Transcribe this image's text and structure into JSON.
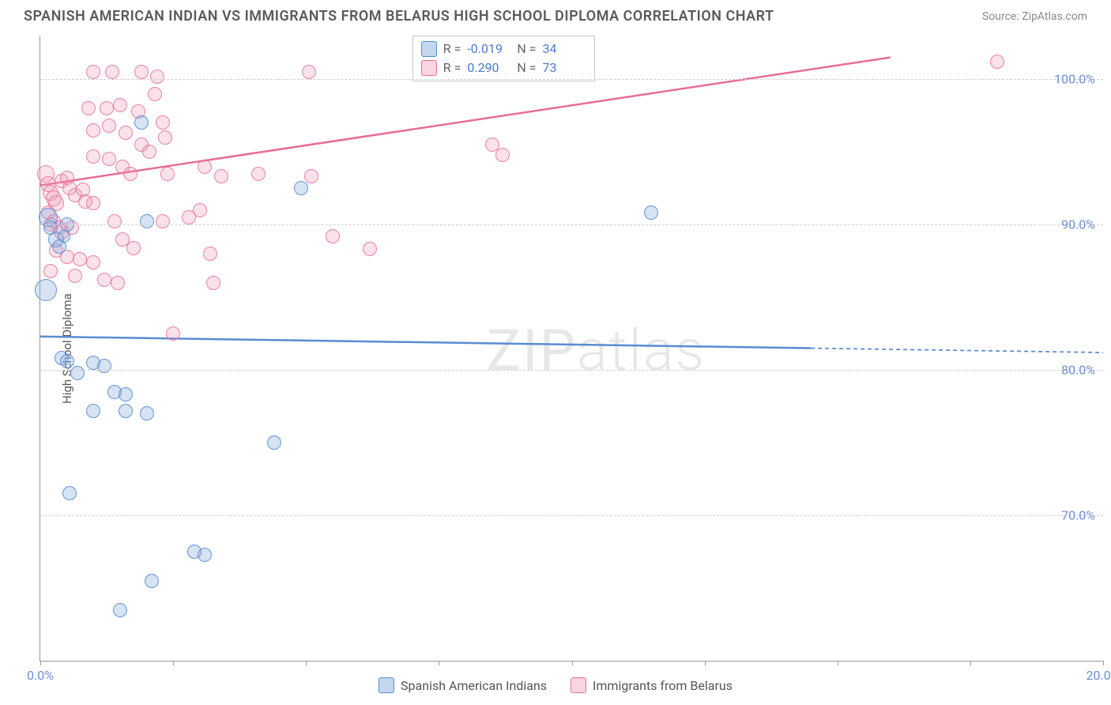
{
  "title": "SPANISH AMERICAN INDIAN VS IMMIGRANTS FROM BELARUS HIGH SCHOOL DIPLOMA CORRELATION CHART",
  "source_label": "Source: ",
  "source_name": "ZipAtlas.com",
  "watermark": "ZIPatlas",
  "y_axis_label": "High School Diploma",
  "chart": {
    "type": "scatter",
    "xlim": [
      0,
      20
    ],
    "ylim": [
      60,
      103
    ],
    "x_ticks": [
      0,
      2.5,
      5,
      7.5,
      10,
      12.5,
      15,
      17.5,
      20
    ],
    "x_tick_labels": [
      "0.0%",
      "",
      "",
      "",
      "",
      "",
      "",
      "",
      "20.0%"
    ],
    "y_ticks": [
      70,
      80,
      90,
      100
    ],
    "y_tick_labels": [
      "70.0%",
      "80.0%",
      "90.0%",
      "100.0%"
    ],
    "grid_color": "#d0d0d0",
    "background_color": "#ffffff",
    "point_radius": 9
  },
  "series_a": {
    "name": "Spanish American Indians",
    "color_fill": "rgba(138,176,222,0.35)",
    "color_stroke": "#5a8cd2",
    "R": "-0.019",
    "N": "34",
    "trend": {
      "x1": 0,
      "y1": 82.3,
      "x2": 14.5,
      "y2": 81.5,
      "x2_dash_end": 20,
      "y2_dash_end": 81.2,
      "width": 2.5
    },
    "points": [
      [
        0.15,
        90.5,
        12
      ],
      [
        0.2,
        89.8,
        9
      ],
      [
        0.3,
        89.0,
        10
      ],
      [
        0.35,
        88.5,
        9
      ],
      [
        0.5,
        90.0,
        9
      ],
      [
        0.1,
        85.5,
        14
      ],
      [
        0.45,
        89.2,
        8
      ],
      [
        0.4,
        80.8,
        9
      ],
      [
        0.5,
        80.6,
        9
      ],
      [
        0.7,
        79.8,
        9
      ],
      [
        1.0,
        80.5,
        9
      ],
      [
        1.2,
        80.3,
        9
      ],
      [
        1.4,
        78.5,
        9
      ],
      [
        1.6,
        78.3,
        9
      ],
      [
        1.0,
        77.2,
        9
      ],
      [
        1.6,
        77.2,
        9
      ],
      [
        2.0,
        77.0,
        9
      ],
      [
        0.55,
        71.5,
        9
      ],
      [
        2.9,
        67.5,
        9
      ],
      [
        3.1,
        67.3,
        9
      ],
      [
        2.1,
        65.5,
        9
      ],
      [
        1.5,
        63.5,
        9
      ],
      [
        4.4,
        75.0,
        9
      ],
      [
        1.9,
        97.0,
        9
      ],
      [
        2.0,
        90.2,
        9
      ],
      [
        4.9,
        92.5,
        9
      ],
      [
        11.5,
        90.8,
        9
      ]
    ]
  },
  "series_b": {
    "name": "Immigrants from Belarus",
    "color_fill": "rgba(240,150,180,0.28)",
    "color_stroke": "#e66e96",
    "R": " 0.290",
    "N": "73",
    "trend": {
      "x1": 0,
      "y1": 92.7,
      "x2": 16.0,
      "y2": 101.5,
      "width": 2.5
    },
    "points": [
      [
        0.1,
        93.5,
        11
      ],
      [
        0.15,
        92.8,
        10
      ],
      [
        0.2,
        92.2,
        10
      ],
      [
        0.25,
        91.8,
        10
      ],
      [
        0.3,
        91.5,
        10
      ],
      [
        0.15,
        90.8,
        9
      ],
      [
        0.25,
        90.2,
        9
      ],
      [
        0.35,
        89.8,
        9
      ],
      [
        0.4,
        93.0,
        9
      ],
      [
        0.5,
        93.2,
        9
      ],
      [
        0.55,
        92.5,
        9
      ],
      [
        0.65,
        92.0,
        9
      ],
      [
        0.2,
        90.0,
        9
      ],
      [
        0.4,
        89.5,
        10
      ],
      [
        0.6,
        89.8,
        9
      ],
      [
        0.8,
        92.4,
        9
      ],
      [
        0.85,
        91.6,
        9
      ],
      [
        0.3,
        88.2,
        9
      ],
      [
        0.5,
        87.8,
        9
      ],
      [
        0.75,
        87.6,
        9
      ],
      [
        1.0,
        87.4,
        9
      ],
      [
        0.2,
        86.8,
        9
      ],
      [
        0.65,
        86.5,
        9
      ],
      [
        1.2,
        86.2,
        9
      ],
      [
        1.45,
        86.0,
        9
      ],
      [
        1.0,
        100.5,
        9
      ],
      [
        1.35,
        100.5,
        9
      ],
      [
        1.9,
        100.5,
        9
      ],
      [
        2.2,
        100.2,
        9
      ],
      [
        2.15,
        99.0,
        9
      ],
      [
        0.9,
        98.0,
        9
      ],
      [
        1.25,
        98.0,
        9
      ],
      [
        1.5,
        98.2,
        9
      ],
      [
        1.85,
        97.8,
        9
      ],
      [
        1.0,
        96.5,
        9
      ],
      [
        1.3,
        96.8,
        9
      ],
      [
        1.6,
        96.3,
        9
      ],
      [
        1.9,
        95.5,
        9
      ],
      [
        2.05,
        95.0,
        9
      ],
      [
        2.3,
        97.0,
        9
      ],
      [
        2.35,
        96.0,
        9
      ],
      [
        1.0,
        94.7,
        9
      ],
      [
        1.3,
        94.5,
        9
      ],
      [
        1.55,
        94.0,
        9
      ],
      [
        1.7,
        93.5,
        9
      ],
      [
        1.0,
        91.5,
        9
      ],
      [
        1.4,
        90.2,
        9
      ],
      [
        1.55,
        89.0,
        9
      ],
      [
        1.75,
        88.4,
        9
      ],
      [
        2.3,
        90.2,
        9
      ],
      [
        2.8,
        90.5,
        9
      ],
      [
        3.0,
        91.0,
        9
      ],
      [
        2.4,
        93.5,
        9
      ],
      [
        3.1,
        94.0,
        9
      ],
      [
        3.4,
        93.3,
        9
      ],
      [
        3.2,
        88.0,
        9
      ],
      [
        3.25,
        86.0,
        9
      ],
      [
        4.1,
        93.5,
        9
      ],
      [
        5.05,
        100.5,
        9
      ],
      [
        5.1,
        93.3,
        9
      ],
      [
        5.5,
        89.2,
        9
      ],
      [
        6.2,
        88.3,
        9
      ],
      [
        8.5,
        95.5,
        9
      ],
      [
        8.7,
        94.8,
        9
      ],
      [
        2.5,
        82.5,
        9
      ],
      [
        18.0,
        101.2,
        9
      ]
    ]
  },
  "stats_box": {
    "rows": [
      {
        "swatch": "blue",
        "R_label": "R = ",
        "R": "-0.019",
        "N_label": "N = ",
        "N": "34"
      },
      {
        "swatch": "pink",
        "R_label": "R = ",
        "R": " 0.290",
        "N_label": "N = ",
        "N": "73"
      }
    ]
  },
  "bottom_legend": [
    {
      "swatch": "blue",
      "label": "Spanish American Indians"
    },
    {
      "swatch": "pink",
      "label": "Immigrants from Belarus"
    }
  ]
}
